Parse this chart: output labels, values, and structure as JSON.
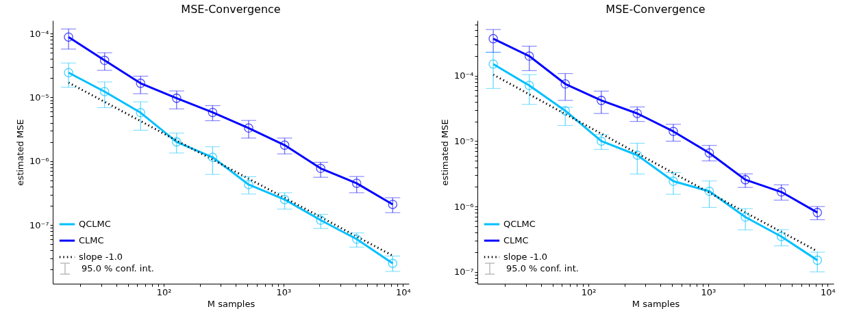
{
  "chart_data": [
    {
      "type": "line",
      "title": "MSE-Convergence",
      "xlabel": "M samples",
      "ylabel": "estimated MSE",
      "log": "xy",
      "grid": false,
      "legend": "bottom left",
      "marker": "circle",
      "x": [
        16,
        32,
        64,
        128,
        256,
        512,
        1024,
        2048,
        4096,
        8192
      ],
      "xlim": [
        11.8,
        11200
      ],
      "xticks": [
        {
          "value": 20,
          "label": null
        },
        {
          "value": 30,
          "label": null
        },
        {
          "value": 40,
          "label": null
        },
        {
          "value": 50,
          "label": null
        },
        {
          "value": 60,
          "label": null
        },
        {
          "value": 70,
          "label": null
        },
        {
          "value": 80,
          "label": null
        },
        {
          "value": 90,
          "label": null
        },
        {
          "value": 100,
          "label": "10²"
        },
        {
          "value": 200,
          "label": null
        },
        {
          "value": 300,
          "label": null
        },
        {
          "value": 400,
          "label": null
        },
        {
          "value": 500,
          "label": null
        },
        {
          "value": 600,
          "label": null
        },
        {
          "value": 700,
          "label": null
        },
        {
          "value": 800,
          "label": null
        },
        {
          "value": 900,
          "label": null
        },
        {
          "value": 1000,
          "label": "10³"
        },
        {
          "value": 2000,
          "label": null
        },
        {
          "value": 3000,
          "label": null
        },
        {
          "value": 4000,
          "label": null
        },
        {
          "value": 5000,
          "label": null
        },
        {
          "value": 6000,
          "label": null
        },
        {
          "value": 7000,
          "label": null
        },
        {
          "value": 8000,
          "label": null
        },
        {
          "value": 9000,
          "label": null
        },
        {
          "value": 10000,
          "label": "10⁴"
        }
      ],
      "ylim": [
        1.2e-08,
        0.00016
      ],
      "yticks": [
        {
          "value": 2e-08,
          "label": null
        },
        {
          "value": 3e-08,
          "label": null
        },
        {
          "value": 4e-08,
          "label": null
        },
        {
          "value": 5e-08,
          "label": null
        },
        {
          "value": 6e-08,
          "label": null
        },
        {
          "value": 7e-08,
          "label": null
        },
        {
          "value": 8e-08,
          "label": null
        },
        {
          "value": 9e-08,
          "label": null
        },
        {
          "value": 1e-07,
          "label": "10⁻⁷"
        },
        {
          "value": 2e-07,
          "label": null
        },
        {
          "value": 3e-07,
          "label": null
        },
        {
          "value": 4e-07,
          "label": null
        },
        {
          "value": 5e-07,
          "label": null
        },
        {
          "value": 6e-07,
          "label": null
        },
        {
          "value": 7e-07,
          "label": null
        },
        {
          "value": 8e-07,
          "label": null
        },
        {
          "value": 9e-07,
          "label": null
        },
        {
          "value": 1e-06,
          "label": "10⁻⁶"
        },
        {
          "value": 2e-06,
          "label": null
        },
        {
          "value": 3e-06,
          "label": null
        },
        {
          "value": 4e-06,
          "label": null
        },
        {
          "value": 5e-06,
          "label": null
        },
        {
          "value": 6e-06,
          "label": null
        },
        {
          "value": 7e-06,
          "label": null
        },
        {
          "value": 8e-06,
          "label": null
        },
        {
          "value": 9e-06,
          "label": null
        },
        {
          "value": 1e-05,
          "label": "10⁻⁵"
        },
        {
          "value": 2e-05,
          "label": null
        },
        {
          "value": 3e-05,
          "label": null
        },
        {
          "value": 4e-05,
          "label": null
        },
        {
          "value": 5e-05,
          "label": null
        },
        {
          "value": 6e-05,
          "label": null
        },
        {
          "value": 7e-05,
          "label": null
        },
        {
          "value": 8e-05,
          "label": null
        },
        {
          "value": 9e-05,
          "label": null
        },
        {
          "value": 0.0001,
          "label": "10⁻⁴"
        }
      ],
      "series": [
        {
          "name": "QCLMC",
          "color": "#00bfff",
          "values": [
            2.44e-05,
            1.23e-05,
            5.75e-06,
            2e-06,
            1.15e-06,
            4.3e-07,
            2.5e-07,
            1.19e-07,
            6e-08,
            2.5e-08
          ],
          "errors": [
            [
              1.44e-05,
              3.45e-05
            ],
            [
              6.9e-06,
              1.74e-05
            ],
            [
              3.05e-06,
              8.5e-06
            ],
            [
              1.34e-06,
              2.75e-06
            ],
            [
              6.2e-07,
              1.68e-06
            ],
            [
              3.05e-07,
              5.7e-07
            ],
            [
              1.77e-07,
              3.2e-07
            ],
            [
              8.8e-08,
              1.47e-07
            ],
            [
              4.5e-08,
              7.5e-08
            ],
            [
              1.87e-08,
              3.26e-08
            ]
          ]
        },
        {
          "name": "CLMC",
          "color": "#0000ff",
          "values": [
            8.8e-05,
            3.8e-05,
            1.66e-05,
            9.7e-06,
            5.8e-06,
            3.3e-06,
            1.78e-06,
            7.7e-07,
            4.5e-07,
            2.1e-07
          ],
          "errors": [
            [
              5.7e-05,
              0.000118
            ],
            [
              2.65e-05,
              5e-05
            ],
            [
              1.14e-05,
              2.15e-05
            ],
            [
              6.6e-06,
              1.26e-05
            ],
            [
              4.3e-06,
              7.4e-06
            ],
            [
              2.3e-06,
              4.35e-06
            ],
            [
              1.3e-06,
              2.3e-06
            ],
            [
              5.6e-07,
              9.6e-07
            ],
            [
              3.2e-07,
              5.75e-07
            ],
            [
              1.56e-07,
              2.67e-07
            ]
          ]
        },
        {
          "name": "slope -1.0",
          "type": "line",
          "color": "#000000",
          "line_style": "dotted",
          "marker": "none",
          "values": [
            1.7e-05,
            8.5e-06,
            4.25e-06,
            2.1e-06,
            1.06e-06,
            5.3e-07,
            2.66e-07,
            1.33e-07,
            6.6e-08,
            3.3e-08
          ]
        }
      ],
      "annotations": [
        "95.0 % conf. int."
      ]
    },
    {
      "type": "line",
      "title": "MSE-Convergence",
      "xlabel": "M samples",
      "ylabel": "estimated MSE",
      "log": "xy",
      "grid": false,
      "legend": "bottom left",
      "marker": "circle",
      "x": [
        16,
        32,
        64,
        128,
        256,
        512,
        1024,
        2048,
        4096,
        8192
      ],
      "xlim": [
        11.8,
        11200
      ],
      "xticks": [
        {
          "value": 20,
          "label": null
        },
        {
          "value": 30,
          "label": null
        },
        {
          "value": 40,
          "label": null
        },
        {
          "value": 50,
          "label": null
        },
        {
          "value": 60,
          "label": null
        },
        {
          "value": 70,
          "label": null
        },
        {
          "value": 80,
          "label": null
        },
        {
          "value": 90,
          "label": null
        },
        {
          "value": 100,
          "label": "10²"
        },
        {
          "value": 200,
          "label": null
        },
        {
          "value": 300,
          "label": null
        },
        {
          "value": 400,
          "label": null
        },
        {
          "value": 500,
          "label": null
        },
        {
          "value": 600,
          "label": null
        },
        {
          "value": 700,
          "label": null
        },
        {
          "value": 800,
          "label": null
        },
        {
          "value": 900,
          "label": null
        },
        {
          "value": 1000,
          "label": "10³"
        },
        {
          "value": 2000,
          "label": null
        },
        {
          "value": 3000,
          "label": null
        },
        {
          "value": 4000,
          "label": null
        },
        {
          "value": 5000,
          "label": null
        },
        {
          "value": 6000,
          "label": null
        },
        {
          "value": 7000,
          "label": null
        },
        {
          "value": 8000,
          "label": null
        },
        {
          "value": 9000,
          "label": null
        },
        {
          "value": 10000,
          "label": "10⁴"
        }
      ],
      "ylim": [
        6.6e-08,
        0.0007
      ],
      "yticks": [
        {
          "value": 7e-08,
          "label": null
        },
        {
          "value": 8e-08,
          "label": null
        },
        {
          "value": 9e-08,
          "label": null
        },
        {
          "value": 1e-07,
          "label": "10⁻⁷"
        },
        {
          "value": 2e-07,
          "label": null
        },
        {
          "value": 3e-07,
          "label": null
        },
        {
          "value": 4e-07,
          "label": null
        },
        {
          "value": 5e-07,
          "label": null
        },
        {
          "value": 6e-07,
          "label": null
        },
        {
          "value": 7e-07,
          "label": null
        },
        {
          "value": 8e-07,
          "label": null
        },
        {
          "value": 9e-07,
          "label": null
        },
        {
          "value": 1e-06,
          "label": "10⁻⁶"
        },
        {
          "value": 2e-06,
          "label": null
        },
        {
          "value": 3e-06,
          "label": null
        },
        {
          "value": 4e-06,
          "label": null
        },
        {
          "value": 5e-06,
          "label": null
        },
        {
          "value": 6e-06,
          "label": null
        },
        {
          "value": 7e-06,
          "label": null
        },
        {
          "value": 8e-06,
          "label": null
        },
        {
          "value": 9e-06,
          "label": null
        },
        {
          "value": 1e-05,
          "label": "10⁻⁵"
        },
        {
          "value": 2e-05,
          "label": null
        },
        {
          "value": 3e-05,
          "label": null
        },
        {
          "value": 4e-05,
          "label": null
        },
        {
          "value": 5e-05,
          "label": null
        },
        {
          "value": 6e-05,
          "label": null
        },
        {
          "value": 7e-05,
          "label": null
        },
        {
          "value": 8e-05,
          "label": null
        },
        {
          "value": 9e-05,
          "label": null
        },
        {
          "value": 0.0001,
          "label": "10⁻⁴"
        },
        {
          "value": 0.0002,
          "label": null
        },
        {
          "value": 0.0003,
          "label": null
        },
        {
          "value": 0.0004,
          "label": null
        },
        {
          "value": 0.0005,
          "label": null
        },
        {
          "value": 0.0006,
          "label": null
        }
      ],
      "series": [
        {
          "name": "QCLMC",
          "color": "#00bfff",
          "values": [
            0.000151,
            7.1e-05,
            2.92e-05,
            1e-05,
            6.1e-06,
            2.44e-06,
            1.71e-06,
            6.9e-07,
            3.48e-07,
            1.51e-07
          ],
          "errors": [
            [
              6.4e-05,
              0.000229
            ],
            [
              3.65e-05,
              0.000104
            ],
            [
              1.74e-05,
              3.3e-05
            ],
            [
              7.5e-06,
              1.26e-05
            ],
            [
              3.14e-06,
              9.3e-06
            ],
            [
              1.54e-06,
              3.3e-06
            ],
            [
              9.7e-07,
              2.46e-06
            ],
            [
              4.4e-07,
              9.3e-07
            ],
            [
              2.5e-07,
              4.43e-07
            ],
            [
              1e-07,
              2e-07
            ]
          ]
        },
        {
          "name": "CLMC",
          "color": "#0000ff",
          "values": [
            0.000369,
            0.0002,
            7.5e-05,
            4.2e-05,
            2.65e-05,
            1.41e-05,
            6.6e-06,
            2.57e-06,
            1.67e-06,
            8.1e-07
          ],
          "errors": [
            [
              0.000229,
              0.00051
            ],
            [
              0.00012,
              0.000283
            ],
            [
              4.2e-05,
              0.000108
            ],
            [
              2.65e-05,
              5.83e-05
            ],
            [
              2e-05,
              3.34e-05
            ],
            [
              1e-05,
              1.81e-05
            ],
            [
              5e-06,
              8.6e-06
            ],
            [
              1.96e-06,
              3.16e-06
            ],
            [
              1.25e-06,
              2.15e-06
            ],
            [
              6.3e-07,
              1e-06
            ]
          ]
        },
        {
          "name": "slope -1.0",
          "type": "line",
          "color": "#000000",
          "line_style": "dotted",
          "marker": "none",
          "values": [
            0.000104,
            5.2e-05,
            2.6e-05,
            1.3e-05,
            6.5e-06,
            3.25e-06,
            1.63e-06,
            8.1e-07,
            4.1e-07,
            2.07e-07
          ]
        }
      ],
      "annotations": [
        "95.0 % conf. int."
      ]
    }
  ]
}
